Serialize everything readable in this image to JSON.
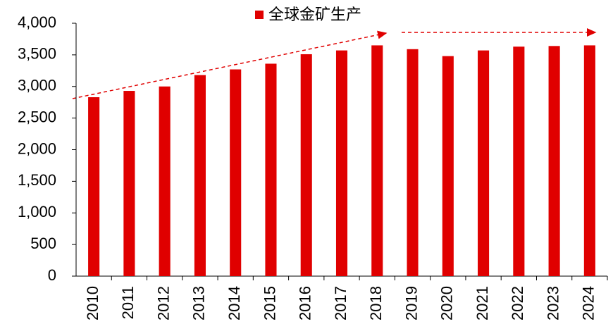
{
  "chart_data": {
    "type": "bar",
    "categories": [
      "2010",
      "2011",
      "2012",
      "2013",
      "2014",
      "2015",
      "2016",
      "2017",
      "2018",
      "2019",
      "2020",
      "2021",
      "2022",
      "2023",
      "2024"
    ],
    "series": [
      {
        "name": "全球金矿生产",
        "color": "#e00000",
        "values": [
          2830,
          2930,
          3000,
          3180,
          3270,
          3360,
          3510,
          3570,
          3650,
          3590,
          3480,
          3570,
          3630,
          3640,
          3650
        ]
      }
    ],
    "ylim": [
      0,
      4000
    ],
    "yticks": [
      0,
      500,
      {
        "value": 1000,
        "label": "1,000"
      },
      {
        "value": 1500,
        "label": "1,500"
      },
      {
        "value": 2000,
        "label": "2,000"
      },
      {
        "value": 2500,
        "label": "2,500"
      },
      {
        "value": 3000,
        "label": "3,000"
      },
      {
        "value": 3500,
        "label": "3,500"
      },
      {
        "value": 4000,
        "label": "4,000"
      }
    ],
    "legend": "top"
  }
}
